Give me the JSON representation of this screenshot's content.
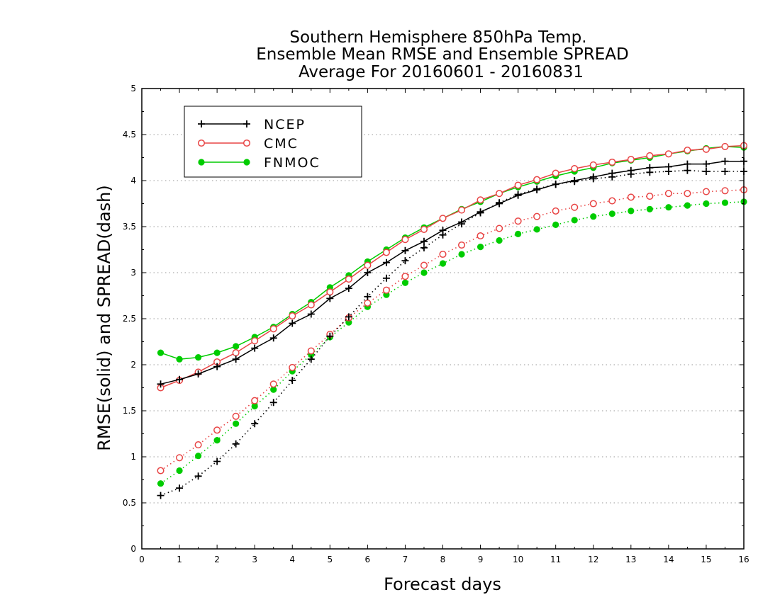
{
  "chart_data": {
    "type": "line",
    "title": [
      "Southern Hemisphere 850hPa Temp.",
      "Ensemble Mean RMSE and Ensemble SPREAD",
      "Average For 20160601 - 20160831"
    ],
    "xlabel": "Forecast days",
    "ylabel": "RMSE(solid) and SPREAD(dash)",
    "xlim": [
      0,
      16
    ],
    "ylim": [
      0,
      5
    ],
    "xticks": [
      "0",
      "1",
      "2",
      "3",
      "4",
      "5",
      "6",
      "7",
      "8",
      "9",
      "10",
      "11",
      "12",
      "13",
      "14",
      "15",
      "16"
    ],
    "yticks": [
      "0",
      "0.5",
      "1",
      "1.5",
      "2",
      "2.5",
      "3",
      "3.5",
      "4",
      "4.5",
      "5"
    ],
    "grid": "horizontal dotted",
    "legend_position": "top-left",
    "x": [
      0.5,
      1,
      1.5,
      2,
      2.5,
      3,
      3.5,
      4,
      4.5,
      5,
      5.5,
      6,
      6.5,
      7,
      7.5,
      8,
      8.5,
      9,
      9.5,
      10,
      10.5,
      11,
      11.5,
      12,
      12.5,
      13,
      13.5,
      14,
      14.5,
      15,
      15.5,
      16
    ],
    "series": [
      {
        "name": "NCEP",
        "color": "#000000",
        "marker": "plus",
        "rmse": [
          1.79,
          1.84,
          1.9,
          1.98,
          2.06,
          2.18,
          2.29,
          2.45,
          2.55,
          2.72,
          2.83,
          3.0,
          3.11,
          3.24,
          3.34,
          3.46,
          3.55,
          3.66,
          3.75,
          3.84,
          3.9,
          3.96,
          4.0,
          4.04,
          4.08,
          4.11,
          4.14,
          4.15,
          4.18,
          4.18,
          4.21,
          4.21
        ],
        "spread": [
          0.58,
          0.66,
          0.79,
          0.95,
          1.14,
          1.36,
          1.59,
          1.83,
          2.06,
          2.31,
          2.52,
          2.74,
          2.94,
          3.13,
          3.27,
          3.41,
          3.53,
          3.65,
          3.76,
          3.85,
          3.91,
          3.96,
          3.99,
          4.02,
          4.04,
          4.07,
          4.09,
          4.1,
          4.11,
          4.1,
          4.1,
          4.1
        ]
      },
      {
        "name": "CMC",
        "color": "#e84545",
        "marker": "open-circle",
        "rmse": [
          1.75,
          1.83,
          1.92,
          2.03,
          2.13,
          2.26,
          2.39,
          2.53,
          2.65,
          2.79,
          2.93,
          3.08,
          3.22,
          3.36,
          3.47,
          3.59,
          3.68,
          3.79,
          3.86,
          3.95,
          4.01,
          4.08,
          4.13,
          4.17,
          4.2,
          4.23,
          4.27,
          4.29,
          4.33,
          4.34,
          4.37,
          4.38
        ],
        "spread": [
          0.85,
          0.99,
          1.13,
          1.29,
          1.44,
          1.61,
          1.79,
          1.97,
          2.15,
          2.33,
          2.51,
          2.67,
          2.81,
          2.96,
          3.08,
          3.2,
          3.3,
          3.4,
          3.48,
          3.56,
          3.61,
          3.67,
          3.71,
          3.75,
          3.78,
          3.82,
          3.83,
          3.86,
          3.86,
          3.88,
          3.89,
          3.9
        ]
      },
      {
        "name": "FNMOC",
        "color": "#00cc00",
        "marker": "filled-circle",
        "rmse": [
          2.13,
          2.06,
          2.08,
          2.13,
          2.2,
          2.3,
          2.41,
          2.55,
          2.68,
          2.84,
          2.97,
          3.12,
          3.25,
          3.38,
          3.49,
          3.59,
          3.69,
          3.77,
          3.86,
          3.93,
          3.99,
          4.05,
          4.1,
          4.14,
          4.19,
          4.22,
          4.25,
          4.29,
          4.32,
          4.35,
          4.37,
          4.36
        ],
        "spread": [
          0.71,
          0.85,
          1.01,
          1.18,
          1.36,
          1.55,
          1.73,
          1.93,
          2.11,
          2.3,
          2.46,
          2.63,
          2.76,
          2.89,
          3.0,
          3.1,
          3.2,
          3.28,
          3.35,
          3.42,
          3.47,
          3.52,
          3.57,
          3.61,
          3.64,
          3.67,
          3.69,
          3.71,
          3.73,
          3.75,
          3.76,
          3.77
        ]
      }
    ]
  }
}
